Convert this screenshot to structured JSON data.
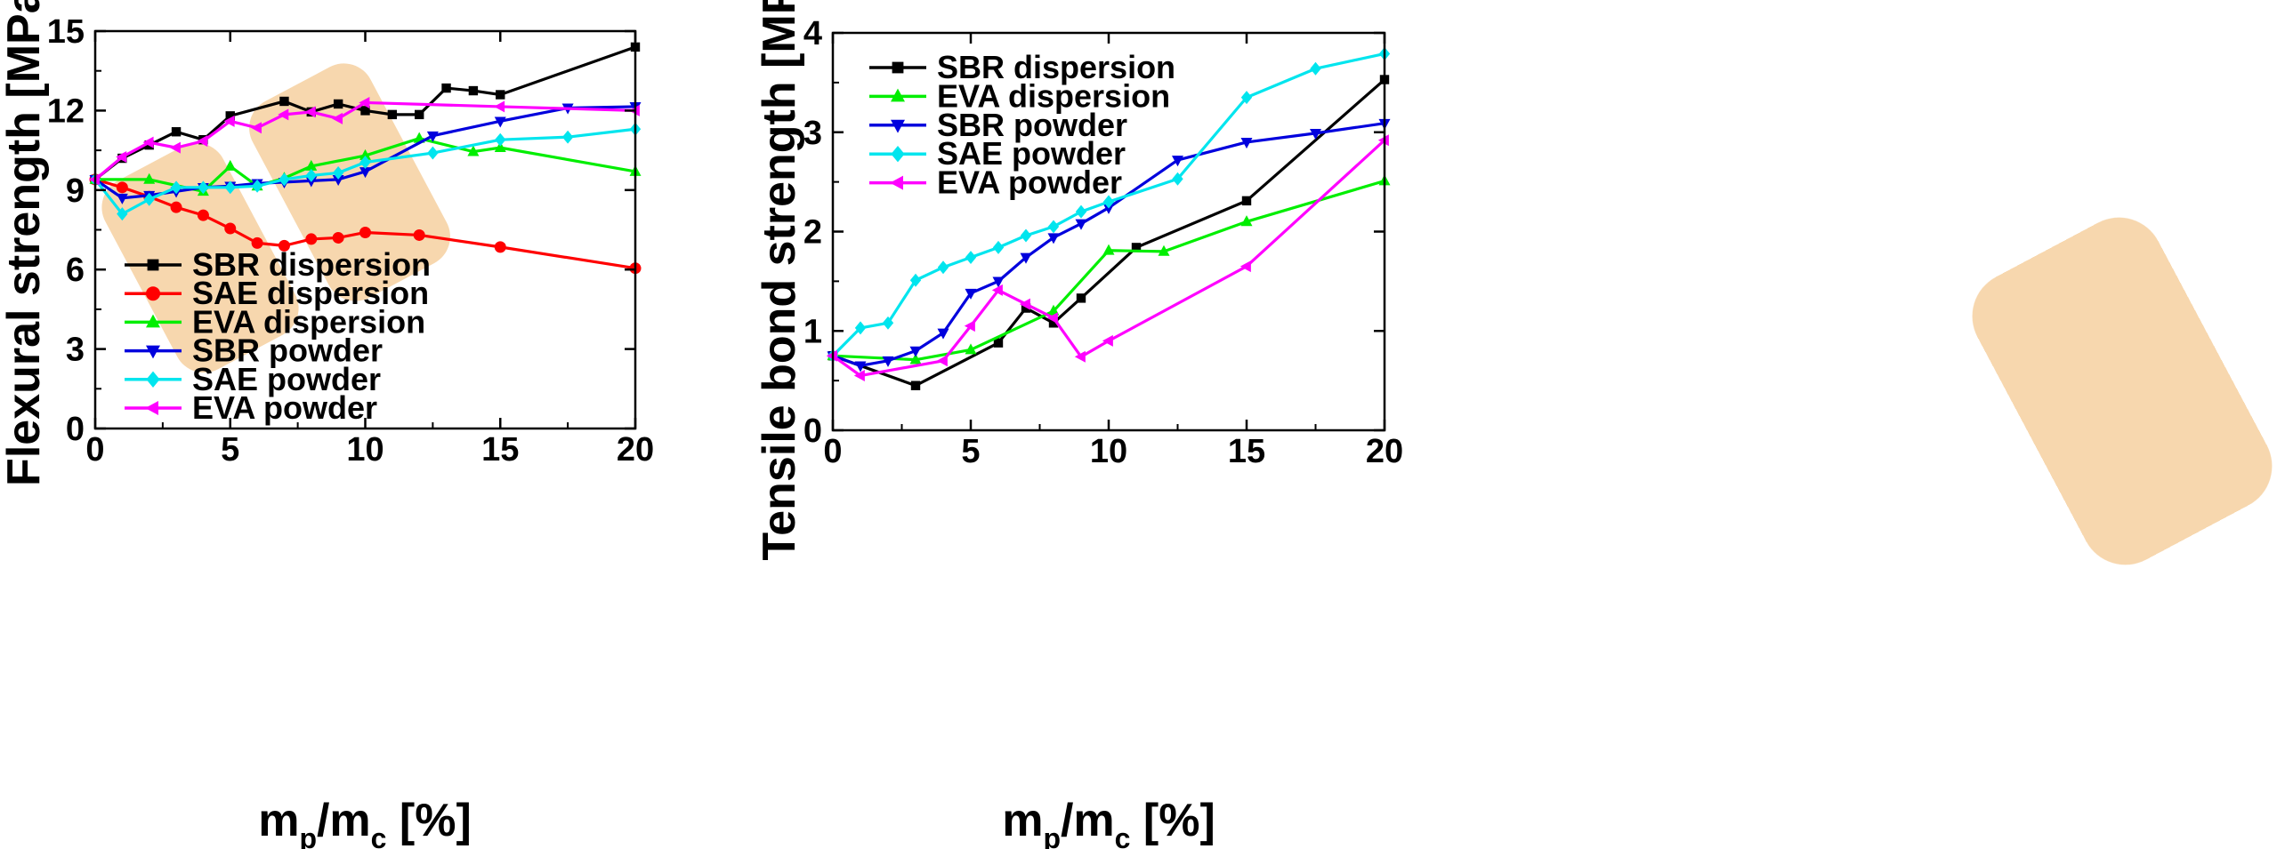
{
  "chart_data": [
    {
      "type": "line",
      "ylabel": "Flexural strength [MPa]",
      "xlabel": {
        "base1": "m",
        "sub1": "p",
        "slash": "/",
        "base2": "m",
        "sub2": "c",
        "unit": " [%]"
      },
      "xlim": [
        0,
        20
      ],
      "ylim": [
        0,
        15
      ],
      "xticks": [
        "0",
        "5",
        "10",
        "15",
        "20"
      ],
      "yticks": [
        "0",
        "3",
        "6",
        "9",
        "12",
        "15"
      ],
      "grid": false,
      "legend_position": "bottom-left",
      "series": [
        {
          "name": "SBR dispersion",
          "color": "#000000",
          "marker": "square",
          "x": [
            0,
            1,
            2,
            3,
            4,
            5,
            7,
            8,
            9,
            10,
            11,
            12,
            13,
            14,
            15,
            20
          ],
          "y": [
            9.4,
            10.2,
            10.7,
            11.2,
            10.9,
            11.8,
            12.35,
            11.95,
            12.25,
            12.0,
            11.85,
            11.85,
            12.85,
            12.75,
            12.6,
            14.4
          ]
        },
        {
          "name": "SAE dispersion",
          "color": "#ff0000",
          "marker": "circle",
          "x": [
            0,
            1,
            2,
            3,
            4,
            5,
            6,
            7,
            8,
            9,
            10,
            12,
            15,
            20
          ],
          "y": [
            9.4,
            9.1,
            8.75,
            8.35,
            8.05,
            7.55,
            7.0,
            6.9,
            7.15,
            7.2,
            7.4,
            7.3,
            6.85,
            6.05
          ]
        },
        {
          "name": "EVA dispersion",
          "color": "#00ee00",
          "marker": "triangle-up",
          "x": [
            0,
            2,
            4,
            5,
            6,
            7,
            8,
            10,
            12,
            14,
            15,
            20
          ],
          "y": [
            9.4,
            9.4,
            8.95,
            9.9,
            9.15,
            9.45,
            9.9,
            10.3,
            10.95,
            10.45,
            10.6,
            9.7
          ]
        },
        {
          "name": "SBR powder",
          "color": "#0000dd",
          "marker": "triangle-down",
          "x": [
            0,
            1,
            2,
            3,
            4,
            5,
            6,
            7,
            8,
            9,
            10,
            12.5,
            15,
            17.5,
            20
          ],
          "y": [
            9.4,
            8.7,
            8.8,
            8.95,
            9.1,
            9.15,
            9.25,
            9.3,
            9.35,
            9.4,
            9.7,
            11.05,
            11.6,
            12.1,
            12.15
          ]
        },
        {
          "name": "SAE powder",
          "color": "#00e5ee",
          "marker": "diamond",
          "x": [
            0,
            1,
            2,
            3,
            4,
            5,
            6,
            7,
            8,
            9,
            10,
            12.5,
            15,
            17.5,
            20
          ],
          "y": [
            9.4,
            8.1,
            8.65,
            9.1,
            9.1,
            9.1,
            9.15,
            9.4,
            9.55,
            9.65,
            10.05,
            10.4,
            10.9,
            11.0,
            11.3
          ]
        },
        {
          "name": "EVA powder",
          "color": "#ff00ff",
          "marker": "triangle-left",
          "x": [
            0,
            1,
            2,
            3,
            4,
            5,
            6,
            7,
            8,
            9,
            10,
            15,
            20
          ],
          "y": [
            9.4,
            10.25,
            10.8,
            10.6,
            10.85,
            11.6,
            11.35,
            11.85,
            11.95,
            11.7,
            12.3,
            12.15,
            12.0
          ]
        }
      ]
    },
    {
      "type": "line",
      "ylabel": "Tensile bond strength [MPa]",
      "xlabel": {
        "base1": "m",
        "sub1": "p",
        "slash": "/",
        "base2": "m",
        "sub2": "c",
        "unit": " [%]"
      },
      "xlim": [
        0,
        20
      ],
      "ylim": [
        0,
        4
      ],
      "xticks": [
        "0",
        "5",
        "10",
        "15",
        "20"
      ],
      "yticks": [
        "0",
        "1",
        "2",
        "3",
        "4"
      ],
      "grid": false,
      "legend_position": "top-left",
      "series": [
        {
          "name": "SBR dispersion",
          "color": "#000000",
          "marker": "square",
          "x": [
            0,
            3,
            6,
            7,
            8,
            9,
            11,
            15,
            20
          ],
          "y": [
            0.75,
            0.45,
            0.88,
            1.23,
            1.08,
            1.33,
            1.84,
            2.31,
            3.53
          ]
        },
        {
          "name": "EVA dispersion",
          "color": "#00ee00",
          "marker": "triangle-up",
          "x": [
            0,
            3,
            5,
            8,
            10,
            12,
            15,
            20
          ],
          "y": [
            0.75,
            0.71,
            0.81,
            1.2,
            1.81,
            1.8,
            2.1,
            2.51
          ]
        },
        {
          "name": "SBR powder",
          "color": "#0000dd",
          "marker": "triangle-down",
          "x": [
            0,
            1,
            2,
            3,
            4,
            5,
            6,
            7,
            8,
            9,
            10,
            12.5,
            15,
            17.5,
            20
          ],
          "y": [
            0.75,
            0.65,
            0.7,
            0.8,
            0.98,
            1.38,
            1.5,
            1.74,
            1.94,
            2.08,
            2.24,
            2.72,
            2.9,
            2.99,
            3.09
          ]
        },
        {
          "name": "SAE powder",
          "color": "#00e5ee",
          "marker": "diamond",
          "x": [
            0,
            1,
            2,
            3,
            4,
            5,
            6,
            7,
            8,
            9,
            10,
            12.5,
            15,
            17.5,
            20
          ],
          "y": [
            0.75,
            1.03,
            1.08,
            1.51,
            1.64,
            1.74,
            1.84,
            1.96,
            2.05,
            2.2,
            2.3,
            2.53,
            3.35,
            3.64,
            3.79
          ]
        },
        {
          "name": "EVA powder",
          "color": "#ff00ff",
          "marker": "triangle-left",
          "x": [
            0,
            1,
            4,
            5,
            6,
            7,
            8,
            9,
            10,
            15,
            20
          ],
          "y": [
            0.75,
            0.55,
            0.7,
            1.05,
            1.41,
            1.27,
            1.13,
            0.74,
            0.9,
            1.65,
            2.92
          ]
        }
      ]
    }
  ]
}
